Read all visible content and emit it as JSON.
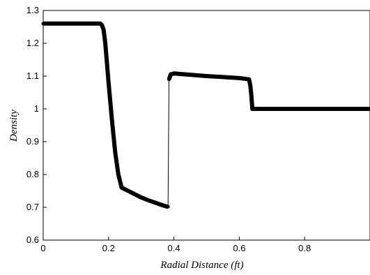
{
  "chart_data": {
    "type": "line",
    "title": "",
    "xlabel": "Radial Distance (ft)",
    "ylabel": "Density",
    "xlim": [
      0,
      1
    ],
    "ylim": [
      0.6,
      1.3
    ],
    "x_ticks": [
      0,
      0.2,
      0.4,
      0.6,
      0.8
    ],
    "x_tick_labels": [
      "0",
      "0.2",
      "0.4",
      "0.6",
      "0.8"
    ],
    "y_ticks": [
      0.6,
      0.7,
      0.8,
      0.9,
      1.0,
      1.1,
      1.2,
      1.3
    ],
    "y_tick_labels": [
      "0.6",
      "0.7",
      "0.8",
      "0.9",
      "1",
      "1.1",
      "1.2",
      "1.3"
    ],
    "grid": false,
    "legend": "none",
    "series": [
      {
        "x": [
          0,
          0.05,
          0.1,
          0.15,
          0.175,
          0.18,
          0.185,
          0.19,
          0.2,
          0.21,
          0.22,
          0.23,
          0.24,
          0.25,
          0.26,
          0.28,
          0.3,
          0.32,
          0.34,
          0.36,
          0.375,
          0.38,
          0.382,
          0.385,
          0.39,
          0.4,
          0.45,
          0.5,
          0.55,
          0.6,
          0.63,
          0.634,
          0.637,
          0.64,
          0.7,
          0.8,
          0.9,
          1.0
        ],
        "y": [
          1.26,
          1.26,
          1.26,
          1.26,
          1.26,
          1.255,
          1.24,
          1.2,
          1.08,
          0.97,
          0.87,
          0.8,
          0.76,
          0.755,
          0.75,
          0.74,
          0.73,
          0.722,
          0.715,
          0.708,
          0.703,
          0.702,
          0.702,
          1.09,
          1.105,
          1.108,
          1.104,
          1.1,
          1.097,
          1.094,
          1.09,
          1.07,
          1.04,
          1.0,
          1.0,
          1.0,
          1.0,
          1.0
        ],
        "color": "#000000"
      }
    ]
  }
}
